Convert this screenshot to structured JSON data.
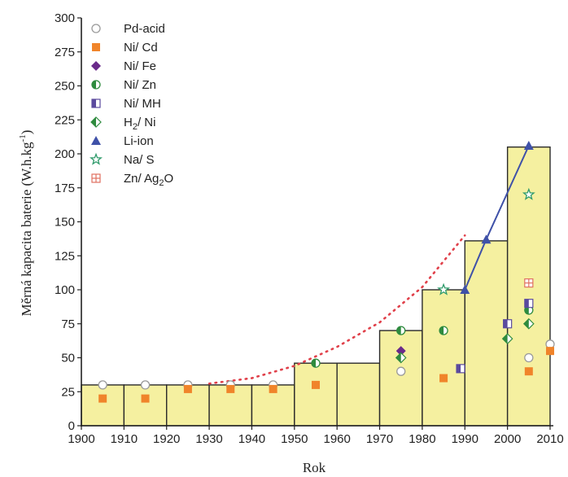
{
  "chart_data": {
    "type": "bar",
    "xlabel": "Rok",
    "ylabel_parts": {
      "main": "Měrná kapacita baterie (W.h.kg",
      "sup": "-1",
      "end": ")"
    },
    "xlim": [
      1900,
      2010
    ],
    "ylim": [
      0,
      300
    ],
    "x_ticks": [
      "1900",
      "1910",
      "1920",
      "1930",
      "1940",
      "1950",
      "1960",
      "1970",
      "1980",
      "1990",
      "2000",
      "2010"
    ],
    "y_ticks": [
      "0",
      "25",
      "50",
      "75",
      "100",
      "125",
      "150",
      "175",
      "200",
      "225",
      "250",
      "275",
      "300"
    ],
    "colors": {
      "bar_fill": "#f5f0a0",
      "bar_stroke": "#2a2a2a",
      "trend_dots": "#e0404a",
      "li_ion_line": "#3f51a8"
    },
    "bars": [
      {
        "x0": 1900,
        "x1": 1910,
        "value": 30
      },
      {
        "x0": 1910,
        "x1": 1920,
        "value": 30
      },
      {
        "x0": 1920,
        "x1": 1930,
        "value": 30
      },
      {
        "x0": 1930,
        "x1": 1940,
        "value": 30
      },
      {
        "x0": 1940,
        "x1": 1950,
        "value": 30
      },
      {
        "x0": 1950,
        "x1": 1960,
        "value": 46
      },
      {
        "x0": 1960,
        "x1": 1970,
        "value": 46
      },
      {
        "x0": 1970,
        "x1": 1980,
        "value": 70
      },
      {
        "x0": 1980,
        "x1": 1990,
        "value": 100
      },
      {
        "x0": 1990,
        "x1": 2000,
        "value": 136
      },
      {
        "x0": 2000,
        "x1": 2010,
        "value": 205
      }
    ],
    "trend": {
      "style": "dotted",
      "x": [
        1930,
        1940,
        1950,
        1960,
        1970,
        1980,
        1990
      ],
      "y": [
        31,
        35,
        44,
        58,
        76,
        102,
        140
      ]
    },
    "series": [
      {
        "name": "Pd-acid",
        "marker": "circle-open",
        "color": "#9a9a9a",
        "x": [
          1905,
          1915,
          1925,
          1935,
          1945,
          1975,
          2005,
          2010
        ],
        "y": [
          30,
          30,
          30,
          30,
          30,
          40,
          50,
          60
        ]
      },
      {
        "name": "Ni/ Cd",
        "marker": "square",
        "color": "#f0842a",
        "x": [
          1905,
          1915,
          1925,
          1935,
          1945,
          1955,
          1985,
          2005,
          2010
        ],
        "y": [
          20,
          20,
          27,
          27,
          27,
          30,
          35,
          40,
          55
        ]
      },
      {
        "name": "Ni/ Fe",
        "marker": "diamond",
        "color": "#6a2a8a",
        "x": [
          1975
        ],
        "y": [
          55
        ]
      },
      {
        "name": "Ni/ Zn",
        "marker": "circle-half",
        "color": "#2e8b3e",
        "x": [
          1955,
          1975,
          1985,
          2005
        ],
        "y": [
          46,
          70,
          70,
          85
        ]
      },
      {
        "name": "Ni/ MH",
        "marker": "square-half",
        "color": "#5b4a9e",
        "x": [
          1989,
          2000,
          2005
        ],
        "y": [
          42,
          75,
          90
        ]
      },
      {
        "name_main": "H",
        "name_sub": "2",
        "name_end": "/ Ni",
        "marker": "diamond-half",
        "color": "#2e8b3e",
        "x": [
          1975,
          2000,
          2005
        ],
        "y": [
          50,
          64,
          75
        ]
      },
      {
        "name": "Li-ion",
        "marker": "triangle",
        "color": "#3f51a8",
        "x": [
          1990,
          1995,
          2005
        ],
        "y": [
          100,
          137,
          206
        ]
      },
      {
        "name": "Na/ S",
        "marker": "star",
        "color": "#2e9a6a",
        "x": [
          1985,
          2005
        ],
        "y": [
          100,
          170
        ]
      },
      {
        "name_main": "Zn/ Ag",
        "name_sub": "2",
        "name_end": "O",
        "marker": "square-plus",
        "color": "#e07060",
        "x": [
          2005
        ],
        "y": [
          105
        ]
      }
    ]
  }
}
